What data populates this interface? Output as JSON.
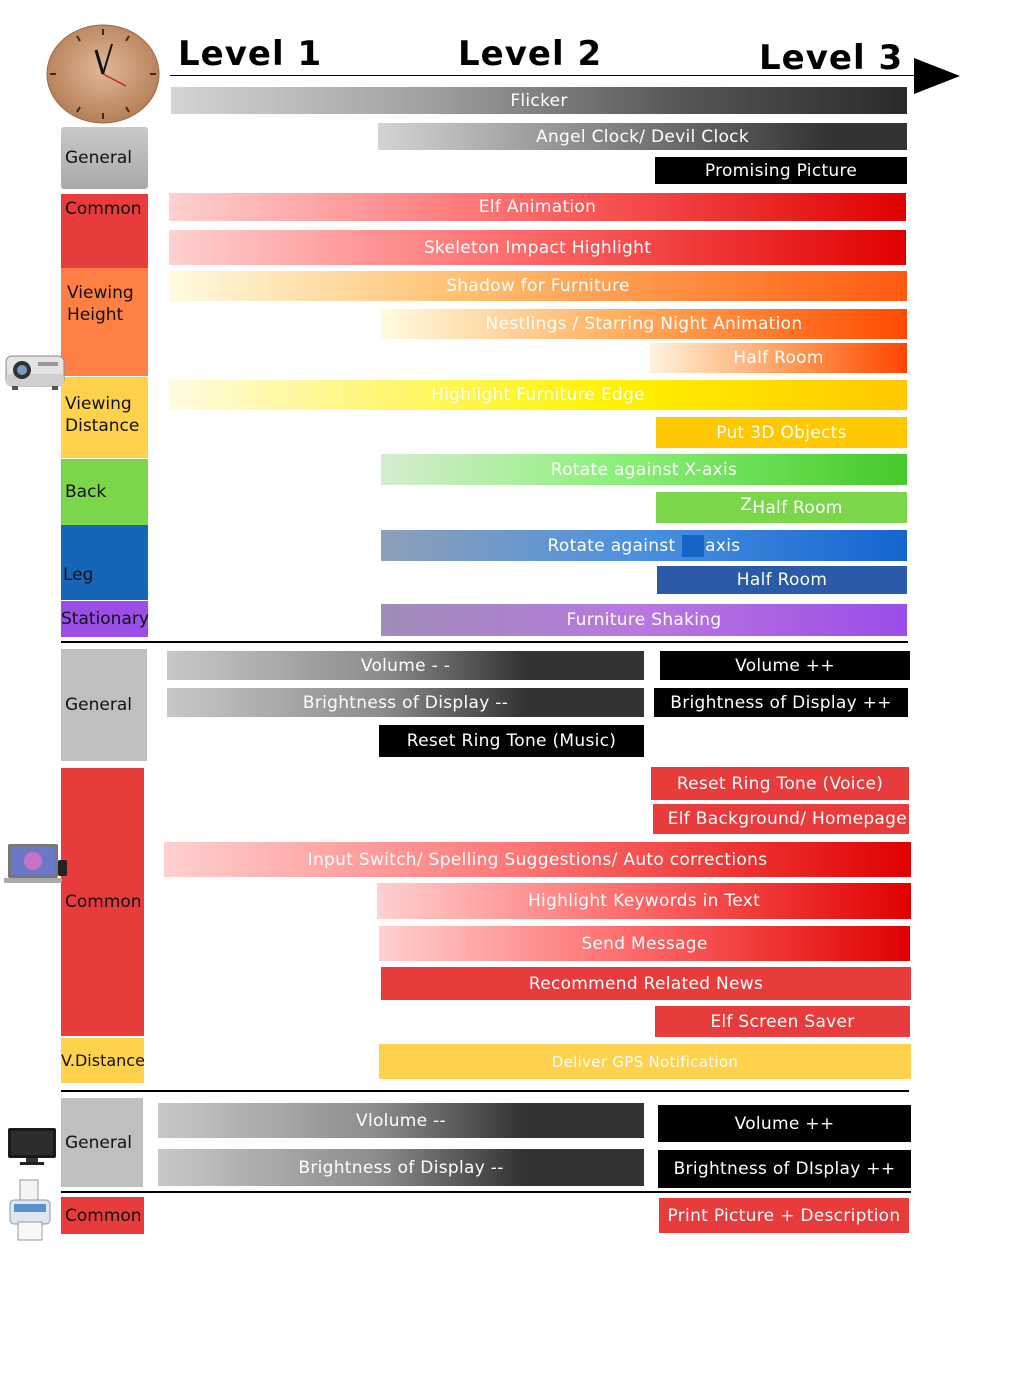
{
  "levels": [
    "Level 1",
    "Level 2",
    "Level 3"
  ],
  "projector_section": {
    "categories": [
      "General",
      "Common",
      "Viewing Height",
      "Viewing Distance",
      "Back",
      "Leg",
      "Stationary"
    ],
    "bars": [
      "Flicker",
      "Angel Clock/ Devil Clock",
      "Promising Picture",
      "Elf Animation",
      "Skeleton Impact Highlight",
      "Shadow for Furniture",
      "Nestlings / Starring Night Animation",
      "Half Room",
      "Highlight Furniture Edge",
      "Put 3D Objects",
      "Rotate against X-axis",
      "Half Room",
      "Rotate against ",
      "axis",
      "Half Room",
      "Furniture Shaking"
    ],
    "z_glyph": "Z"
  },
  "laptop_section": {
    "categories": [
      "General",
      "Common",
      "V.Distance"
    ],
    "bars": [
      "Volume - -",
      "Volume ++",
      "Brightness of Display --",
      "Brightness of Display ++",
      "Reset Ring Tone (Music)",
      "Reset Ring Tone (Voice)",
      "Elf Background/ Homepage",
      "Input Switch/ Spelling Suggestions/ Auto corrections",
      "Highlight Keywords in Text",
      "Send Message",
      "Recommend Related News",
      "Elf Screen Saver",
      "Deliver GPS Notification"
    ]
  },
  "tv_section": {
    "categories": [
      "General"
    ],
    "bars": [
      "Vlolume --",
      "Volume ++",
      "Brightness of Display --",
      "Brightness of DIsplay ++"
    ]
  },
  "printer_section": {
    "categories": [
      "Common"
    ],
    "bars": [
      "Print Picture + Description"
    ]
  },
  "colors": {
    "general": "#bfbfbf",
    "common": "#e83b3b",
    "viewing_height": "#ff7f45",
    "viewing_distance": "#ffd24d",
    "back": "#7cd64a",
    "leg": "#1565b8",
    "stationary": "#9b4de8"
  }
}
